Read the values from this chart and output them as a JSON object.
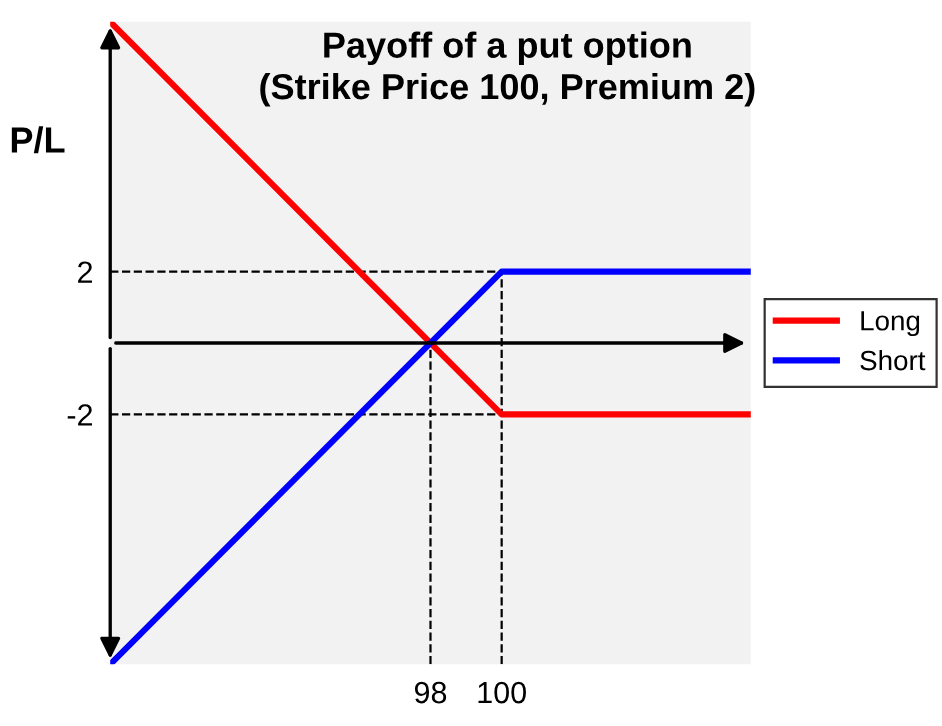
{
  "chart_data": {
    "type": "line",
    "title": "Payoff of a put option\n(Strike Price 100, Premium 2)",
    "ylabel": "P/L",
    "x": [
      89,
      100,
      107
    ],
    "series": [
      {
        "name": "Long",
        "color": "#ff0000",
        "values": [
          9,
          -2,
          -2
        ]
      },
      {
        "name": "Short",
        "color": "#0000ff",
        "values": [
          -9,
          2,
          2
        ]
      }
    ],
    "xlim": [
      89,
      107
    ],
    "ylim": [
      -9,
      9
    ],
    "xticks": [
      98,
      100
    ],
    "yticks": [
      -2,
      2
    ],
    "ref_lines": [
      {
        "axis": "x",
        "value": 98,
        "line_style": "dashed",
        "color": "#000000"
      },
      {
        "axis": "x",
        "value": 100,
        "line_style": "dashed",
        "color": "#000000"
      },
      {
        "axis": "y",
        "value": 2,
        "line_style": "dashed",
        "color": "#000000"
      },
      {
        "axis": "y",
        "value": -2,
        "line_style": "dashed",
        "color": "#000000"
      }
    ],
    "legend": "right",
    "marker": "none",
    "line_style": "solid"
  }
}
